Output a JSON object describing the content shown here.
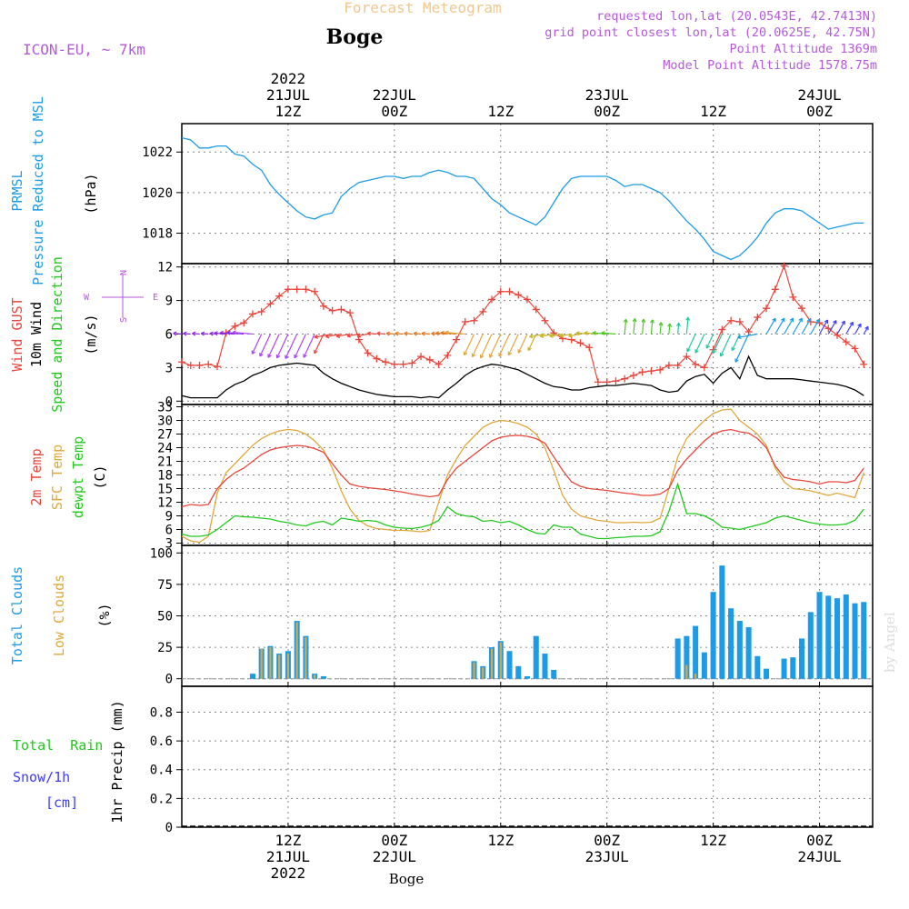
{
  "header": {
    "title_small": "Forecast Meteogram",
    "location": "Boge",
    "model": "ICON-EU, ~ 7km",
    "requested": "requested lon,lat (20.0543E, 42.7413N)",
    "gridpoint": "grid point closest lon,lat (20.0625E, 42.75N)",
    "point_alt": "Point Altitude 1369m",
    "model_alt": "Model Point Altitude 1578.75m",
    "watermark": "by Angel",
    "footer_location": "Boge"
  },
  "time_axis": {
    "start_hour": 0,
    "end_hour": 78,
    "year_label": "2022",
    "ticks": [
      {
        "hour": 12,
        "top": [
          "2022",
          "21JUL",
          "12Z"
        ],
        "bottom": [
          "12Z",
          "21JUL",
          "2022"
        ]
      },
      {
        "hour": 24,
        "top": [
          "22JUL",
          "00Z"
        ],
        "bottom": [
          "00Z",
          "22JUL"
        ]
      },
      {
        "hour": 36,
        "top": [
          "12Z"
        ],
        "bottom": [
          "12Z"
        ]
      },
      {
        "hour": 48,
        "top": [
          "23JUL",
          "00Z"
        ],
        "bottom": [
          "00Z",
          "23JUL"
        ]
      },
      {
        "hour": 60,
        "top": [
          "12Z"
        ],
        "bottom": [
          "12Z"
        ]
      },
      {
        "hour": 72,
        "top": [
          "24JUL",
          "00Z"
        ],
        "bottom": [
          "00Z",
          "24JUL"
        ]
      }
    ]
  },
  "panels": {
    "pressure": {
      "labels": [
        "PRMSL",
        "Pressure Reduced to MSL"
      ],
      "unit": "(hPa)"
    },
    "wind": {
      "labels": [
        "Wind GUST",
        "10m Wind",
        "Speed and Direction"
      ],
      "unit": "(m/s)",
      "compass": {
        "n": "N",
        "s": "S",
        "w": "W",
        "e": "E"
      }
    },
    "temp": {
      "labels": [
        "2m Temp",
        "SFC Temp",
        "dewpt Temp"
      ],
      "unit": "(C)"
    },
    "clouds": {
      "labels": [
        "Total Clouds",
        "Low Clouds"
      ],
      "unit": "(%)"
    },
    "precip": {
      "labels": [
        "Total  Rain",
        "Snow/1h",
        "[cm]"
      ],
      "unit": "1hr Precip (mm)"
    }
  },
  "colors": {
    "pressure": "#1e9be6",
    "gust": "#e8463c",
    "wind": "#000000",
    "t2m": "#e8463c",
    "sfc": "#e0a83c",
    "dewpt": "#22c81e",
    "total_clouds": "#1e9be6",
    "low_clouds": "#e0a83c",
    "rain": "#22c81e",
    "snow": "#3c3cff",
    "header_purple": "#b45adc",
    "header_orange": "#f0c890",
    "grid": "#888888"
  },
  "chart_data": [
    {
      "type": "line",
      "title": "PRMSL Pressure Reduced to MSL",
      "ylabel": "(hPa)",
      "ylim": [
        1016.5,
        1023.4
      ],
      "yticks": [
        1018,
        1020,
        1022
      ],
      "x_hours": [
        0,
        1,
        2,
        3,
        4,
        5,
        6,
        7,
        8,
        9,
        10,
        11,
        12,
        13,
        14,
        15,
        16,
        17,
        18,
        19,
        20,
        21,
        22,
        23,
        24,
        25,
        26,
        27,
        28,
        29,
        30,
        31,
        32,
        33,
        34,
        35,
        36,
        37,
        38,
        39,
        40,
        41,
        42,
        43,
        44,
        45,
        46,
        47,
        48,
        49,
        50,
        51,
        52,
        53,
        54,
        55,
        56,
        57,
        58,
        59,
        60,
        61,
        62,
        63,
        64,
        65,
        66,
        67,
        68,
        69,
        70,
        71,
        72,
        73,
        74,
        75,
        76,
        77
      ],
      "series": [
        {
          "name": "PRMSL",
          "values": [
            1022.7,
            1022.6,
            1022.2,
            1022.2,
            1022.3,
            1022.3,
            1021.9,
            1021.8,
            1021.4,
            1021.1,
            1020.4,
            1019.9,
            1019.5,
            1019.1,
            1018.8,
            1018.7,
            1018.9,
            1019.0,
            1019.8,
            1020.2,
            1020.5,
            1020.6,
            1020.7,
            1020.8,
            1020.8,
            1020.7,
            1020.8,
            1020.8,
            1021.0,
            1021.1,
            1021.0,
            1020.8,
            1020.8,
            1020.7,
            1020.2,
            1019.7,
            1019.4,
            1019.0,
            1018.8,
            1018.6,
            1018.4,
            1018.8,
            1019.5,
            1020.2,
            1020.7,
            1020.8,
            1020.8,
            1020.8,
            1020.8,
            1020.6,
            1020.3,
            1020.4,
            1020.4,
            1020.2,
            1020.0,
            1019.6,
            1019.1,
            1018.6,
            1018.2,
            1017.7,
            1017.1,
            1016.9,
            1016.7,
            1016.9,
            1017.3,
            1017.8,
            1018.5,
            1019.0,
            1019.2,
            1019.2,
            1019.1,
            1018.8,
            1018.5,
            1018.2,
            1018.3,
            1018.4,
            1018.5,
            1018.5
          ]
        }
      ]
    },
    {
      "type": "line",
      "title": "Wind GUST / 10m Wind Speed and Direction",
      "ylabel": "(m/s)",
      "ylim": [
        -0.3,
        12.3
      ],
      "yticks": [
        0,
        3,
        6,
        9,
        12
      ],
      "x_hours": [
        0,
        1,
        2,
        3,
        4,
        5,
        6,
        7,
        8,
        9,
        10,
        11,
        12,
        13,
        14,
        15,
        16,
        17,
        18,
        19,
        20,
        21,
        22,
        23,
        24,
        25,
        26,
        27,
        28,
        29,
        30,
        31,
        32,
        33,
        34,
        35,
        36,
        37,
        38,
        39,
        40,
        41,
        42,
        43,
        44,
        45,
        46,
        47,
        48,
        49,
        50,
        51,
        52,
        53,
        54,
        55,
        56,
        57,
        58,
        59,
        60,
        61,
        62,
        63,
        64,
        65,
        66,
        67,
        68,
        69,
        70,
        71,
        72,
        73,
        74,
        75,
        76,
        77
      ],
      "series": [
        {
          "name": "Wind GUST",
          "values": [
            3.5,
            3.2,
            3.2,
            3.3,
            3.1,
            6.1,
            6.7,
            7.0,
            7.8,
            8.0,
            8.7,
            9.4,
            10.0,
            10.0,
            10.0,
            9.8,
            8.5,
            8.1,
            8.2,
            7.9,
            5.5,
            4.3,
            3.8,
            3.5,
            3.3,
            3.3,
            3.4,
            4.0,
            3.7,
            3.3,
            4.1,
            5.5,
            7.1,
            7.2,
            8.0,
            9.1,
            9.8,
            9.8,
            9.5,
            9.1,
            8.2,
            7.2,
            6.1,
            5.6,
            5.5,
            5.2,
            4.8,
            1.7,
            1.7,
            1.8,
            2.0,
            2.3,
            2.6,
            2.7,
            2.8,
            3.2,
            3.2,
            4.0,
            3.3,
            3.0,
            4.6,
            6.4,
            7.2,
            7.1,
            6.2,
            7.5,
            8.3,
            10.0,
            12.1,
            9.3,
            8.3,
            7.1,
            7.0,
            6.5,
            5.9,
            5.3,
            4.7,
            3.3
          ]
        },
        {
          "name": "10m Wind",
          "values": [
            0.5,
            0.3,
            0.3,
            0.3,
            0.3,
            1.0,
            1.5,
            1.8,
            2.3,
            2.6,
            3.0,
            3.2,
            3.3,
            3.4,
            3.3,
            3.2,
            2.5,
            2.0,
            1.6,
            1.3,
            1.0,
            0.8,
            0.6,
            0.5,
            0.4,
            0.4,
            0.4,
            0.3,
            0.4,
            0.3,
            1.0,
            1.6,
            2.3,
            2.8,
            3.1,
            3.3,
            3.2,
            3.0,
            2.8,
            2.4,
            2.0,
            1.6,
            1.3,
            1.2,
            1.0,
            1.0,
            1.2,
            1.3,
            1.4,
            1.4,
            1.5,
            1.6,
            1.5,
            1.4,
            1.0,
            0.8,
            0.9,
            1.8,
            2.2,
            2.4,
            1.6,
            2.5,
            3.0,
            2.0,
            4.0,
            2.3,
            2.0,
            2.0,
            2.0,
            2.0,
            1.9,
            1.8,
            1.7,
            1.6,
            1.5,
            1.3,
            1.0,
            0.5
          ]
        }
      ],
      "direction_arrows_level": 6,
      "direction_colors": [
        "#8c28dc",
        "#aa44ff",
        "#e8463c",
        "#e07820",
        "#e0a83c",
        "#c8b428",
        "#50c828",
        "#22c8a0",
        "#1e9be6",
        "#3c3cff"
      ]
    },
    {
      "type": "line",
      "title": "2m Temp / SFC Temp / dewpt Temp",
      "ylabel": "(C)",
      "ylim": [
        2.5,
        33.5
      ],
      "yticks": [
        3,
        6,
        9,
        12,
        15,
        18,
        21,
        24,
        27,
        30,
        33
      ],
      "x_hours": [
        0,
        1,
        2,
        3,
        4,
        5,
        6,
        7,
        8,
        9,
        10,
        11,
        12,
        13,
        14,
        15,
        16,
        17,
        18,
        19,
        20,
        21,
        22,
        23,
        24,
        25,
        26,
        27,
        28,
        29,
        30,
        31,
        32,
        33,
        34,
        35,
        36,
        37,
        38,
        39,
        40,
        41,
        42,
        43,
        44,
        45,
        46,
        47,
        48,
        49,
        50,
        51,
        52,
        53,
        54,
        55,
        56,
        57,
        58,
        59,
        60,
        61,
        62,
        63,
        64,
        65,
        66,
        67,
        68,
        69,
        70,
        71,
        72,
        73,
        74,
        75,
        76,
        77
      ],
      "series": [
        {
          "name": "2m Temp",
          "values": [
            11.0,
            11.5,
            11.3,
            11.5,
            15.0,
            17.0,
            18.5,
            19.5,
            21.0,
            22.5,
            23.5,
            24.0,
            24.3,
            24.5,
            24.3,
            23.8,
            23.0,
            20.5,
            18.0,
            16.0,
            15.5,
            15.2,
            15.0,
            14.8,
            14.5,
            14.2,
            13.8,
            13.5,
            13.2,
            13.5,
            17.0,
            19.5,
            21.0,
            22.5,
            24.0,
            25.5,
            26.3,
            26.6,
            26.7,
            26.5,
            26.0,
            25.0,
            22.0,
            19.0,
            16.5,
            15.5,
            15.0,
            14.8,
            14.6,
            14.3,
            14.0,
            13.8,
            13.5,
            13.5,
            13.8,
            15.0,
            19.0,
            21.5,
            23.5,
            25.5,
            27.0,
            27.7,
            28.0,
            27.5,
            27.2,
            26.0,
            24.0,
            20.0,
            17.5,
            17.0,
            16.8,
            16.5,
            16.0,
            16.5,
            16.5,
            16.3,
            16.8,
            19.5
          ]
        },
        {
          "name": "SFC Temp",
          "values": [
            4.5,
            3.5,
            3.2,
            4.5,
            14.0,
            18.5,
            20.5,
            22.5,
            24.5,
            26.0,
            27.0,
            27.7,
            28.0,
            27.8,
            27.0,
            25.5,
            23.5,
            19.5,
            14.5,
            10.5,
            8.0,
            6.8,
            6.2,
            6.0,
            5.8,
            5.8,
            5.7,
            5.5,
            5.8,
            12.0,
            18.0,
            21.5,
            24.5,
            26.5,
            28.5,
            29.5,
            30.0,
            29.8,
            29.3,
            28.5,
            27.0,
            24.0,
            19.0,
            13.5,
            10.5,
            9.0,
            8.5,
            8.0,
            7.8,
            7.5,
            7.5,
            7.6,
            7.5,
            7.6,
            8.5,
            15.0,
            22.0,
            26.0,
            28.0,
            30.0,
            31.5,
            32.3,
            32.5,
            30.0,
            28.5,
            27.0,
            24.5,
            19.5,
            16.5,
            15.0,
            14.8,
            14.5,
            14.0,
            13.5,
            14.0,
            13.5,
            13.0,
            18.5
          ]
        },
        {
          "name": "dewpt Temp",
          "values": [
            5.0,
            4.5,
            4.5,
            4.8,
            6.0,
            7.5,
            9.0,
            8.8,
            8.7,
            8.5,
            8.3,
            7.8,
            7.5,
            7.0,
            6.8,
            7.5,
            7.8,
            7.0,
            8.5,
            8.2,
            7.8,
            8.0,
            7.8,
            7.0,
            6.5,
            6.3,
            6.2,
            6.5,
            7.0,
            8.0,
            11.0,
            9.5,
            9.0,
            8.8,
            7.8,
            8.0,
            7.5,
            7.8,
            7.0,
            6.0,
            5.2,
            5.0,
            7.0,
            6.5,
            6.5,
            5.0,
            4.5,
            4.0,
            4.0,
            4.2,
            4.3,
            4.5,
            4.5,
            4.6,
            5.5,
            10.0,
            16.0,
            9.5,
            9.5,
            9.0,
            8.0,
            6.5,
            6.3,
            6.0,
            6.5,
            7.0,
            7.5,
            8.5,
            9.0,
            8.5,
            8.0,
            7.5,
            7.2,
            7.0,
            7.0,
            7.2,
            8.0,
            10.5
          ]
        }
      ]
    },
    {
      "type": "bar",
      "title": "Total Clouds / Low Clouds",
      "ylabel": "(%)",
      "ylim": [
        -6,
        106
      ],
      "yticks": [
        0,
        25,
        50,
        75,
        100
      ],
      "x_hours": [
        0,
        1,
        2,
        3,
        4,
        5,
        6,
        7,
        8,
        9,
        10,
        11,
        12,
        13,
        14,
        15,
        16,
        17,
        18,
        19,
        20,
        21,
        22,
        23,
        24,
        25,
        26,
        27,
        28,
        29,
        30,
        31,
        32,
        33,
        34,
        35,
        36,
        37,
        38,
        39,
        40,
        41,
        42,
        43,
        44,
        45,
        46,
        47,
        48,
        49,
        50,
        51,
        52,
        53,
        54,
        55,
        56,
        57,
        58,
        59,
        60,
        61,
        62,
        63,
        64,
        65,
        66,
        67,
        68,
        69,
        70,
        71,
        72,
        73,
        74,
        75,
        76,
        77
      ],
      "series": [
        {
          "name": "Total Clouds",
          "values": [
            0,
            0,
            0,
            0,
            0,
            0,
            0,
            0,
            4,
            24,
            26,
            20,
            22,
            46,
            34,
            4,
            2,
            0,
            0,
            0,
            0,
            0,
            0,
            0,
            0,
            0,
            0,
            0,
            0,
            0,
            0,
            0,
            0,
            14,
            10,
            25,
            30,
            22,
            10,
            2,
            34,
            20,
            7,
            0,
            0,
            0,
            0,
            0,
            0,
            0,
            0,
            0,
            0,
            0,
            0,
            0,
            32,
            34,
            42,
            21,
            69,
            90,
            56,
            46,
            41,
            18,
            8,
            0,
            16,
            17,
            32,
            53,
            69,
            66,
            64,
            67,
            60,
            61
          ]
        },
        {
          "name": "Low Clouds",
          "values": [
            0,
            0,
            0,
            0,
            0,
            0,
            0,
            0,
            0,
            24,
            25,
            19,
            20,
            45,
            33,
            3,
            0,
            0,
            0,
            0,
            0,
            0,
            0,
            0,
            0,
            0,
            0,
            0,
            0,
            0,
            0,
            0,
            0,
            13,
            9,
            24,
            29,
            0,
            0,
            0,
            0,
            0,
            0,
            0,
            0,
            0,
            0,
            0,
            0,
            0,
            0,
            0,
            0,
            0,
            0,
            0,
            0,
            11,
            4,
            0,
            0,
            0,
            0,
            0,
            0,
            0,
            0,
            0,
            0,
            0,
            0,
            0,
            0,
            0,
            0,
            0,
            0,
            0
          ]
        }
      ]
    },
    {
      "type": "line",
      "title": "1hr Precip",
      "ylabel": "1hr Precip (mm)",
      "ylim": [
        0,
        0.98
      ],
      "yticks": [
        0,
        0.2,
        0.4,
        0.6,
        0.8
      ],
      "series": [
        {
          "name": "Total Rain",
          "values": []
        },
        {
          "name": "Snow/1h",
          "values": []
        }
      ]
    }
  ]
}
